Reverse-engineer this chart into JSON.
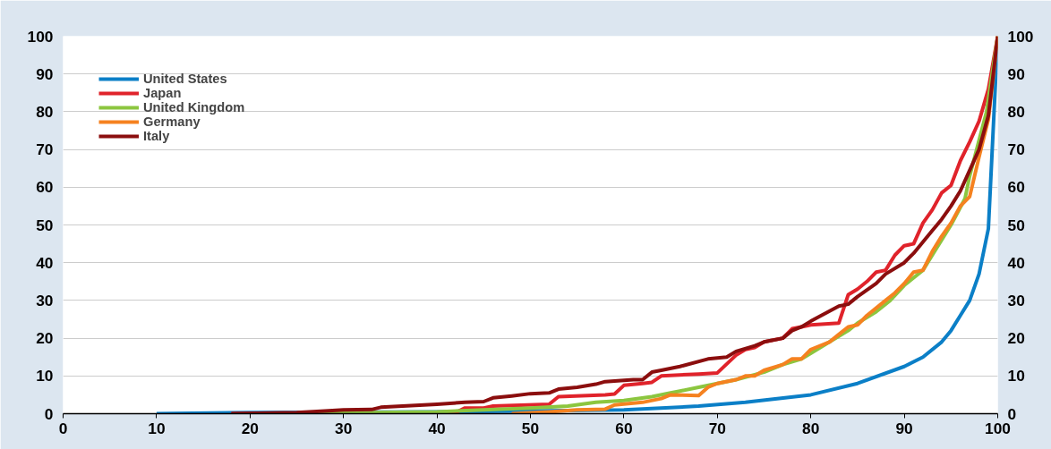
{
  "chart_data": {
    "type": "line",
    "xlim": [
      0,
      100
    ],
    "xticks": [
      0,
      10,
      20,
      30,
      40,
      50,
      60,
      70,
      80,
      90,
      100
    ],
    "ylim": [
      0,
      100
    ],
    "yticks": [
      0,
      10,
      20,
      30,
      40,
      50,
      60,
      70,
      80,
      90,
      100
    ],
    "y2lim": [
      0,
      100
    ],
    "y2ticks": [
      0,
      10,
      20,
      30,
      40,
      50,
      60,
      70,
      80,
      90,
      100
    ],
    "grid": "y",
    "legend": "top left",
    "line_style": "solid",
    "marker": "none",
    "series": [
      {
        "name": "United States",
        "color": "#0b7fc7",
        "x": [
          10,
          20,
          40,
          50,
          60,
          68,
          73,
          80,
          85,
          90,
          92,
          94,
          95,
          96,
          97,
          98,
          99,
          100
        ],
        "values": [
          0,
          0.3,
          0.5,
          0.7,
          1,
          2,
          3,
          5,
          8,
          12.5,
          15,
          19,
          22,
          26,
          30,
          37,
          49,
          100
        ]
      },
      {
        "name": "Japan",
        "color": "#e0232b",
        "x": [
          18,
          42,
          43,
          45,
          46,
          52,
          53,
          58,
          59,
          60,
          62,
          63,
          64,
          68,
          70,
          72,
          73,
          74,
          75,
          77,
          78,
          79,
          80,
          83,
          84,
          85,
          86,
          87,
          88,
          89,
          90,
          91,
          92,
          93,
          94,
          95,
          96,
          97,
          98,
          99,
          100
        ],
        "values": [
          0,
          0.3,
          1.5,
          1.5,
          2,
          2.5,
          4.5,
          5,
          5.2,
          7.5,
          8,
          8.3,
          10,
          10.5,
          10.8,
          15.5,
          17,
          17.5,
          19,
          20,
          22.5,
          23,
          23.5,
          24,
          31.5,
          33,
          35,
          37.5,
          38,
          42,
          44.5,
          45,
          50.5,
          54,
          58.5,
          60.5,
          67,
          72,
          77.5,
          86,
          100
        ]
      },
      {
        "name": "United Kingdom",
        "color": "#8cc63f",
        "x": [
          22,
          40,
          45,
          50,
          54,
          57,
          60,
          63,
          65,
          66,
          68,
          70,
          72,
          75,
          77,
          79,
          80,
          82,
          84,
          85,
          87,
          88.5,
          90,
          92,
          93.5,
          95,
          96.5,
          97,
          98.8,
          100
        ],
        "values": [
          0,
          0.5,
          1,
          1.5,
          2,
          3,
          3.5,
          4.5,
          5.5,
          6,
          7,
          8,
          9,
          11,
          13,
          14.5,
          16,
          19,
          22,
          24,
          27,
          30,
          34,
          38,
          44,
          50,
          57,
          63,
          80,
          100
        ]
      },
      {
        "name": "Germany",
        "color": "#f58220",
        "x": [
          48,
          52,
          55,
          58,
          59,
          62,
          64,
          65,
          68,
          69,
          70,
          72,
          73,
          74,
          75,
          77,
          78,
          79,
          80,
          82,
          83,
          84,
          85,
          86,
          88,
          89,
          90,
          91,
          92,
          93,
          94,
          95,
          96,
          97,
          98,
          99,
          100
        ],
        "values": [
          0,
          0.5,
          1,
          1.2,
          2.3,
          3,
          4,
          5,
          4.8,
          7,
          8,
          9,
          10,
          10,
          11.5,
          13,
          14.5,
          14.5,
          17,
          19,
          21,
          23,
          23.5,
          26,
          30,
          32,
          34.5,
          37.5,
          38,
          43,
          47,
          50.5,
          55,
          57.5,
          68,
          78,
          100
        ]
      },
      {
        "name": "Italy",
        "color": "#8b0e0e",
        "x": [
          18,
          25,
          28,
          30,
          33,
          34,
          40,
          43,
          45,
          46,
          48,
          50,
          52,
          53,
          55,
          57,
          58,
          61,
          62,
          63,
          64,
          66,
          69,
          71,
          72,
          74,
          75,
          77,
          78,
          79,
          80,
          83,
          84,
          85,
          87,
          88,
          90,
          91,
          92,
          93,
          94,
          95,
          96,
          97,
          98,
          99,
          100
        ],
        "values": [
          0,
          0.3,
          0.7,
          1,
          1.1,
          1.7,
          2.5,
          3,
          3.2,
          4.2,
          4.7,
          5.3,
          5.5,
          6.5,
          7,
          7.8,
          8.5,
          9,
          9,
          11,
          11.5,
          12.5,
          14.5,
          15,
          16.5,
          18,
          19,
          20,
          22,
          23,
          24.5,
          28.5,
          29,
          31,
          34.5,
          37,
          40,
          42.5,
          45.5,
          48.5,
          51.5,
          55,
          59,
          64.5,
          70,
          79,
          100
        ]
      }
    ]
  }
}
